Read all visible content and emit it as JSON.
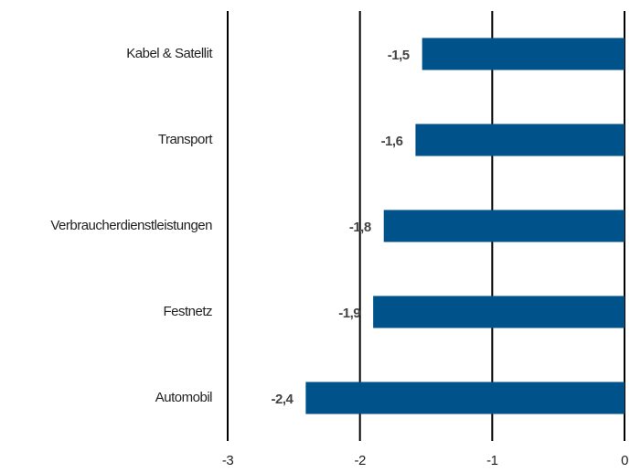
{
  "chart_data": {
    "type": "barh",
    "categories": [
      "Kabel & Satellit",
      "Transport",
      "Verbraucherdienstleistungen",
      "Festnetz",
      "Automobil"
    ],
    "values": [
      -1.53,
      -1.58,
      -1.82,
      -1.9,
      -2.41
    ],
    "value_labels": [
      "-1,5",
      "-1,6",
      "-1,8",
      "-1,9",
      "-2,4"
    ],
    "color": "#00538a",
    "xlim": [
      -3,
      0
    ],
    "xticks": [
      -3,
      -2,
      -1,
      0
    ],
    "grid": true
  }
}
